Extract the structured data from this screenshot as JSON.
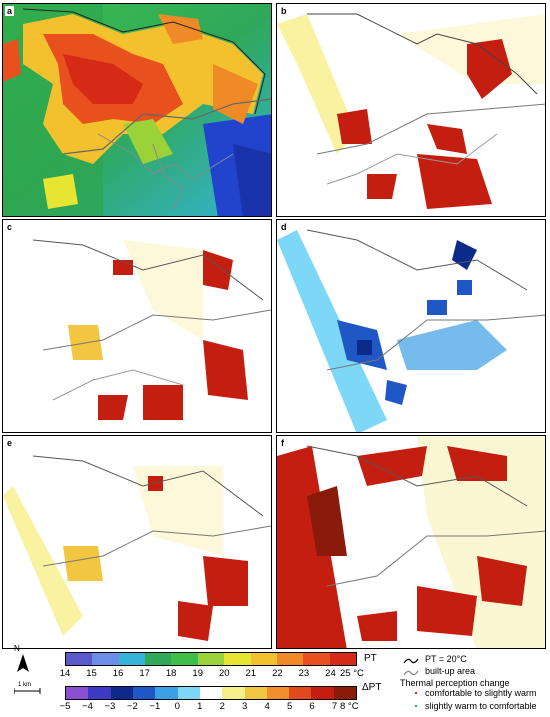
{
  "panels": [
    {
      "id": "a",
      "label": "a"
    },
    {
      "id": "b",
      "label": "b"
    },
    {
      "id": "c",
      "label": "c"
    },
    {
      "id": "d",
      "label": "d"
    },
    {
      "id": "e",
      "label": "e"
    },
    {
      "id": "f",
      "label": "f"
    }
  ],
  "legend": {
    "north": "N",
    "scale": "1 km",
    "pt_label": "PT",
    "pt_unit": "25 °C",
    "pt_ticks": [
      "14",
      "15",
      "16",
      "17",
      "18",
      "19",
      "20",
      "21",
      "22",
      "23",
      "24"
    ],
    "pt_colors": [
      "#5a5acd",
      "#6b8ee8",
      "#34b4d8",
      "#2fa85a",
      "#3dbf4a",
      "#9bd238",
      "#e8e532",
      "#f3c12e",
      "#f08a26",
      "#e8501d",
      "#d42a16"
    ],
    "dpt_label": "ΔPT",
    "dpt_unit": "8 °C",
    "dpt_ticks": [
      "−5",
      "−4",
      "−3",
      "−2",
      "−1",
      "0",
      "1",
      "2",
      "3",
      "4",
      "5",
      "6",
      "7"
    ],
    "dpt_colors": [
      "#8b4fd1",
      "#3b3bc4",
      "#0b2a8a",
      "#1f58c4",
      "#3ba0e6",
      "#7dd8f7",
      "#ffffff",
      "#f7ef8a",
      "#f2c640",
      "#f08e2a",
      "#e04a1c",
      "#c41e10",
      "#8a1a0a"
    ],
    "isoline_label": "PT = 20°C",
    "builtup_label": "built-up area",
    "thermal_title": "Thermal perception change",
    "change_warm": "comfortable to slightly warm",
    "change_cool": "slightly warm to comfortable"
  }
}
